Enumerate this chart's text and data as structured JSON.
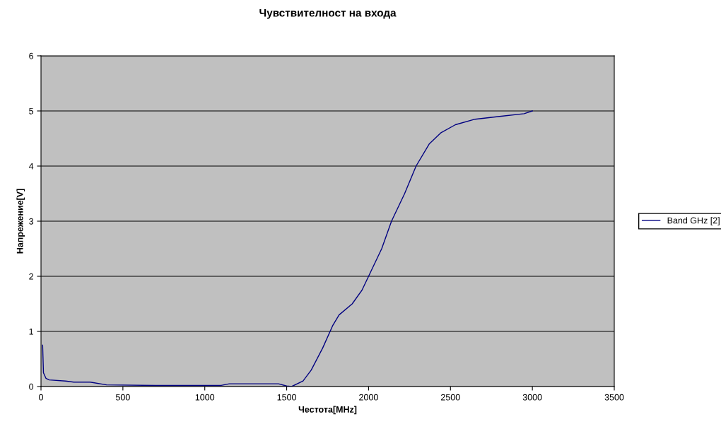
{
  "chart_data": {
    "type": "line",
    "title": "Чувствителност на входа",
    "xlabel": "Честота[MHz]",
    "ylabel": "Напрежение[V]",
    "xlim": [
      0,
      3500
    ],
    "xticks": [
      0,
      500,
      1000,
      1500,
      2000,
      2500,
      3000,
      3500
    ],
    "ylim": [
      0,
      6
    ],
    "yticks": [
      0,
      1,
      2,
      3,
      4,
      5,
      6
    ],
    "grid": "y",
    "legend": "right",
    "marker": "none",
    "line_style": "solid",
    "series": [
      {
        "name": "Band GHz [2]",
        "color": "#000080",
        "x": [
          10,
          15,
          30,
          50,
          150,
          200,
          300,
          400,
          700,
          1100,
          1150,
          1450,
          1500,
          1530,
          1600,
          1650,
          1720,
          1780,
          1820,
          1900,
          1960,
          2000,
          2080,
          2140,
          2220,
          2290,
          2370,
          2440,
          2530,
          2650,
          2800,
          2950,
          3000
        ],
        "values": [
          0.75,
          0.25,
          0.15,
          0.12,
          0.1,
          0.08,
          0.08,
          0.03,
          0.02,
          0.02,
          0.05,
          0.05,
          0.01,
          0.0,
          0.1,
          0.3,
          0.7,
          1.1,
          1.3,
          1.5,
          1.75,
          2.0,
          2.5,
          3.0,
          3.5,
          4.0,
          4.4,
          4.6,
          4.75,
          4.85,
          4.9,
          4.95,
          5.0
        ]
      }
    ]
  }
}
